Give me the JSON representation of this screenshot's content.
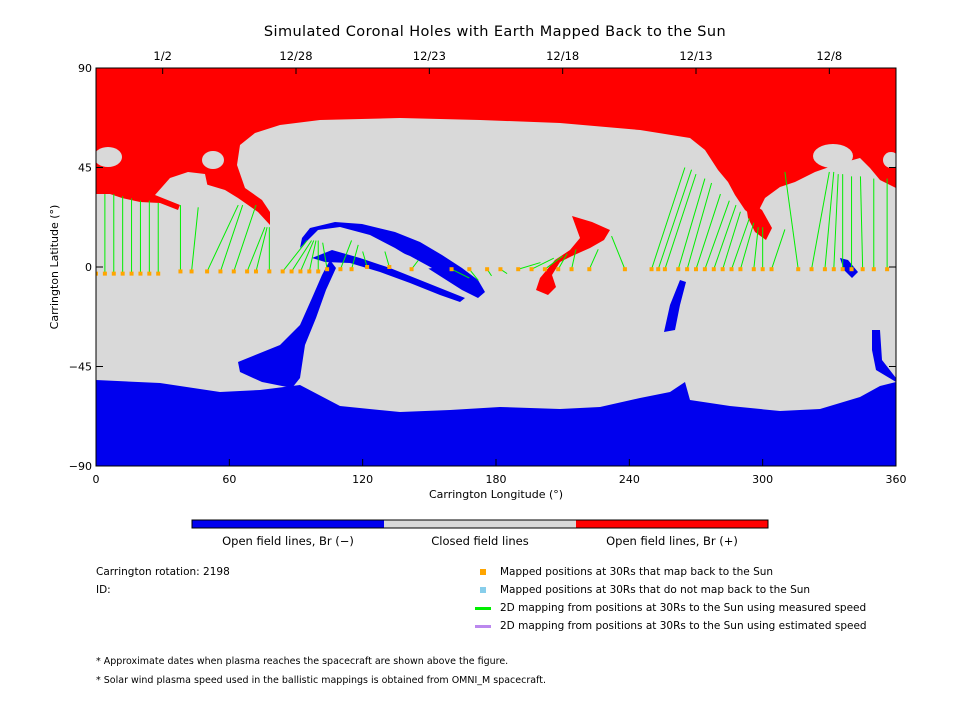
{
  "chart_data": {
    "type": "map",
    "title": "Simulated Coronal Holes with Earth Mapped Back to the Sun",
    "xlabel": "Carrington Longitude (°)",
    "ylabel": "Carrington Latitude (°)",
    "xlim": [
      0,
      360
    ],
    "ylim": [
      -90,
      90
    ],
    "x_ticks": [
      0,
      60,
      120,
      180,
      240,
      300,
      360
    ],
    "y_ticks": [
      -90,
      -45,
      0,
      45,
      90
    ],
    "y_tick_labels": [
      "−90",
      "−45",
      "0",
      "45",
      "90"
    ],
    "top_axis_dates": [
      {
        "label": "1/2",
        "longitude": 30
      },
      {
        "label": "12/28",
        "longitude": 90
      },
      {
        "label": "12/23",
        "longitude": 150
      },
      {
        "label": "12/18",
        "longitude": 210
      },
      {
        "label": "12/13",
        "longitude": 270
      },
      {
        "label": "12/8",
        "longitude": 330
      }
    ],
    "colors": {
      "open_negative": "#0000ee",
      "closed": "#d9d9d9",
      "open_positive": "#ff0000",
      "mapped_point": "#ffa500",
      "unmapped_point": "#87ceeb",
      "measured_line": "#00ee00",
      "estimated_line": "#bb88ee"
    },
    "mapping_lines": [
      {
        "from": [
          0,
          -3
        ],
        "to": [
          0,
          34
        ]
      },
      {
        "from": [
          4,
          -3
        ],
        "to": [
          4,
          33
        ]
      },
      {
        "from": [
          8,
          -3
        ],
        "to": [
          8,
          33
        ]
      },
      {
        "from": [
          12,
          -3
        ],
        "to": [
          12,
          32
        ]
      },
      {
        "from": [
          16,
          -3
        ],
        "to": [
          16,
          31
        ]
      },
      {
        "from": [
          20,
          -3
        ],
        "to": [
          20,
          30
        ]
      },
      {
        "from": [
          24,
          -3
        ],
        "to": [
          24,
          30
        ]
      },
      {
        "from": [
          28,
          -3
        ],
        "to": [
          28,
          29
        ]
      },
      {
        "from": [
          38,
          -2
        ],
        "to": [
          38,
          28
        ]
      },
      {
        "from": [
          43,
          -2
        ],
        "to": [
          46,
          27
        ]
      },
      {
        "from": [
          50,
          -2
        ],
        "to": [
          64,
          28
        ]
      },
      {
        "from": [
          56,
          -2
        ],
        "to": [
          66,
          28
        ]
      },
      {
        "from": [
          62,
          -2
        ],
        "to": [
          72,
          28
        ]
      },
      {
        "from": [
          68,
          -2
        ],
        "to": [
          76,
          18
        ]
      },
      {
        "from": [
          72,
          -2
        ],
        "to": [
          77,
          18
        ]
      },
      {
        "from": [
          78,
          -2
        ],
        "to": [
          78,
          18
        ]
      },
      {
        "from": [
          84,
          -2
        ],
        "to": [
          95,
          12
        ]
      },
      {
        "from": [
          88,
          -2
        ],
        "to": [
          97,
          12
        ]
      },
      {
        "from": [
          92,
          -2
        ],
        "to": [
          98,
          12
        ]
      },
      {
        "from": [
          96,
          -2
        ],
        "to": [
          99,
          12
        ]
      },
      {
        "from": [
          100,
          -2
        ],
        "to": [
          100,
          12
        ]
      },
      {
        "from": [
          104,
          -1
        ],
        "to": [
          102,
          11
        ]
      },
      {
        "from": [
          110,
          -1
        ],
        "to": [
          115,
          12
        ]
      },
      {
        "from": [
          115,
          -1
        ],
        "to": [
          118,
          10
        ]
      },
      {
        "from": [
          122,
          0
        ],
        "to": [
          120,
          7
        ]
      },
      {
        "from": [
          132,
          0
        ],
        "to": [
          130,
          7
        ]
      },
      {
        "from": [
          142,
          -1
        ],
        "to": [
          145,
          3
        ]
      },
      {
        "from": [
          160,
          -1
        ],
        "to": [
          168,
          -5
        ]
      },
      {
        "from": [
          168,
          -1
        ],
        "to": [
          172,
          -6
        ]
      },
      {
        "from": [
          176,
          -1
        ],
        "to": [
          178,
          -4
        ]
      },
      {
        "from": [
          182,
          -1
        ],
        "to": [
          185,
          -3
        ]
      },
      {
        "from": [
          190,
          -1
        ],
        "to": [
          200,
          2
        ]
      },
      {
        "from": [
          196,
          -1
        ],
        "to": [
          206,
          4
        ]
      },
      {
        "from": [
          202,
          -1
        ],
        "to": [
          210,
          5
        ]
      },
      {
        "from": [
          208,
          -1
        ],
        "to": [
          212,
          6
        ]
      },
      {
        "from": [
          214,
          -1
        ],
        "to": [
          216,
          8
        ]
      },
      {
        "from": [
          222,
          -1
        ],
        "to": [
          226,
          8
        ]
      },
      {
        "from": [
          238,
          -1
        ],
        "to": [
          232,
          14
        ]
      },
      {
        "from": [
          250,
          -1
        ],
        "to": [
          265,
          45
        ]
      },
      {
        "from": [
          253,
          -1
        ],
        "to": [
          268,
          44
        ]
      },
      {
        "from": [
          256,
          -1
        ],
        "to": [
          270,
          42
        ]
      },
      {
        "from": [
          262,
          -1
        ],
        "to": [
          274,
          40
        ]
      },
      {
        "from": [
          266,
          -1
        ],
        "to": [
          277,
          38
        ]
      },
      {
        "from": [
          270,
          -1
        ],
        "to": [
          281,
          33
        ]
      },
      {
        "from": [
          274,
          -1
        ],
        "to": [
          285,
          30
        ]
      },
      {
        "from": [
          278,
          -1
        ],
        "to": [
          288,
          28
        ]
      },
      {
        "from": [
          282,
          -1
        ],
        "to": [
          290,
          25
        ]
      },
      {
        "from": [
          286,
          -1
        ],
        "to": [
          294,
          22
        ]
      },
      {
        "from": [
          290,
          -1
        ],
        "to": [
          296,
          20
        ]
      },
      {
        "from": [
          296,
          -1
        ],
        "to": [
          298,
          18
        ]
      },
      {
        "from": [
          300,
          -1
        ],
        "to": [
          300,
          18
        ]
      },
      {
        "from": [
          304,
          -1
        ],
        "to": [
          310,
          17
        ]
      },
      {
        "from": [
          316,
          -1
        ],
        "to": [
          310,
          43
        ]
      },
      {
        "from": [
          322,
          -1
        ],
        "to": [
          330,
          43
        ]
      },
      {
        "from": [
          328,
          -1
        ],
        "to": [
          332,
          43
        ]
      },
      {
        "from": [
          332,
          -1
        ],
        "to": [
          334,
          42
        ]
      },
      {
        "from": [
          336,
          -1
        ],
        "to": [
          336,
          42
        ]
      },
      {
        "from": [
          340,
          -1
        ],
        "to": [
          340,
          41
        ]
      },
      {
        "from": [
          345,
          -1
        ],
        "to": [
          344,
          41
        ]
      },
      {
        "from": [
          350,
          -1
        ],
        "to": [
          350,
          40
        ]
      },
      {
        "from": [
          356,
          -1
        ],
        "to": [
          356,
          40
        ]
      }
    ]
  },
  "colorbar": {
    "negative_label": "Open field lines, Br (−)",
    "closed_label": "Closed field lines",
    "positive_label": "Open field lines, Br (+)"
  },
  "info": {
    "carrington_rotation": "Carrington rotation: 2198",
    "id": "ID:"
  },
  "legend": {
    "mapped": "Mapped positions at 30Rs that map back to the Sun",
    "unmapped": "Mapped positions at 30Rs that do not map back to the Sun",
    "measured": "2D mapping from positions at 30Rs to the Sun using measured speed",
    "estimated": "2D mapping from positions at 30Rs to the Sun using estimated speed"
  },
  "notes": {
    "dates": "* Approximate dates when plasma reaches the spacecraft are shown above the figure.",
    "speed": "* Solar wind plasma speed used in the ballistic mappings is obtained from OMNI_M spacecraft."
  }
}
